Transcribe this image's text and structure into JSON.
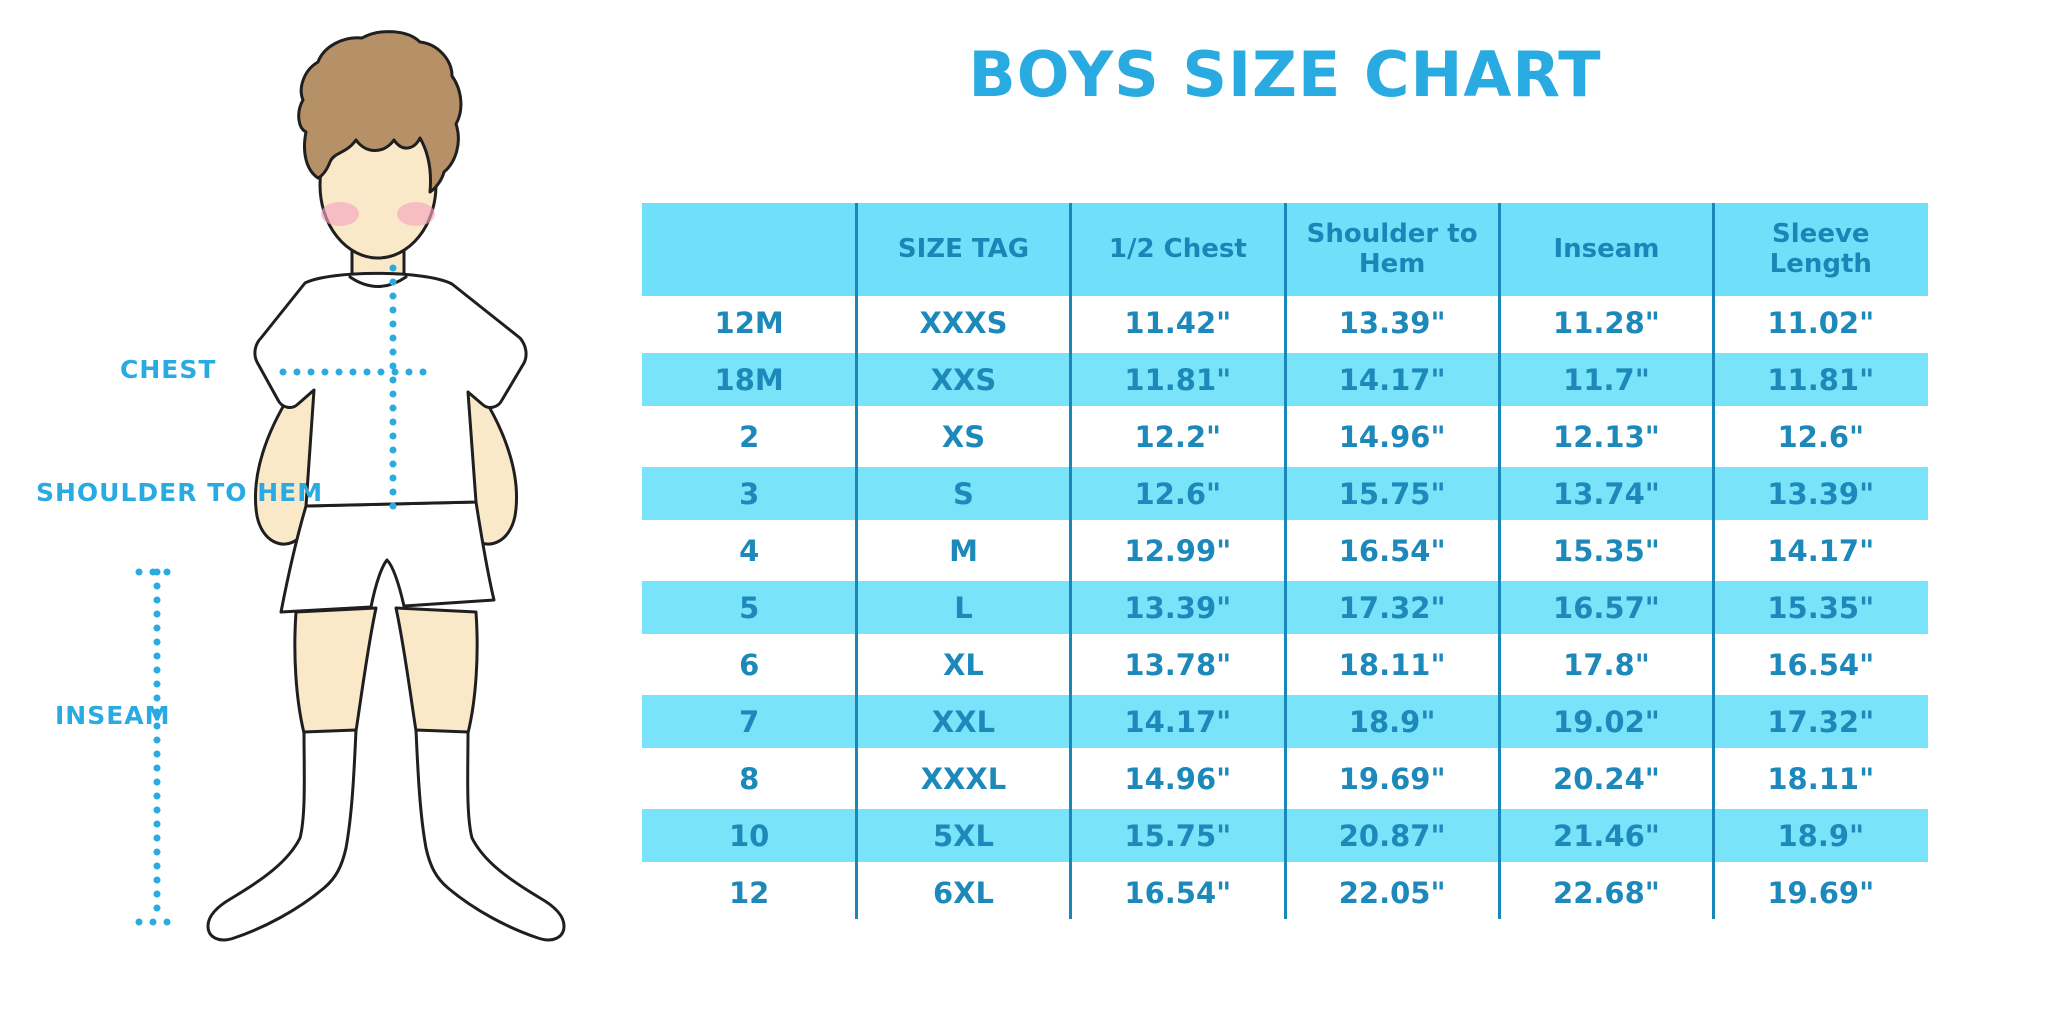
{
  "title": "BOYS SIZE CHART",
  "diagram": {
    "chest_label": "CHEST",
    "shoulder_to_hem_label": "SHOULDER TO HEM",
    "inseam_label": "INSEAM"
  },
  "chart_data": {
    "type": "table",
    "title": "BOYS SIZE CHART",
    "columns": [
      "",
      "SIZE TAG",
      "1/2 Chest",
      "Shoulder to Hem",
      "Inseam",
      "Sleeve Length"
    ],
    "rows": [
      [
        "12M",
        "XXXS",
        "11.42\"",
        "13.39\"",
        "11.28\"",
        "11.02\""
      ],
      [
        "18M",
        "XXS",
        "11.81\"",
        "14.17\"",
        "11.7\"",
        "11.81\""
      ],
      [
        "2",
        "XS",
        "12.2\"",
        "14.96\"",
        "12.13\"",
        "12.6\""
      ],
      [
        "3",
        "S",
        "12.6\"",
        "15.75\"",
        "13.74\"",
        "13.39\""
      ],
      [
        "4",
        "M",
        "12.99\"",
        "16.54\"",
        "15.35\"",
        "14.17\""
      ],
      [
        "5",
        "L",
        "13.39\"",
        "17.32\"",
        "16.57\"",
        "15.35\""
      ],
      [
        "6",
        "XL",
        "13.78\"",
        "18.11\"",
        "17.8\"",
        "16.54\""
      ],
      [
        "7",
        "XXL",
        "14.17\"",
        "18.9\"",
        "19.02\"",
        "17.32\""
      ],
      [
        "8",
        "XXXL",
        "14.96\"",
        "19.69\"",
        "20.24\"",
        "18.11\""
      ],
      [
        "10",
        "5XL",
        "15.75\"",
        "20.87\"",
        "21.46\"",
        "18.9\""
      ],
      [
        "12",
        "6XL",
        "16.54\"",
        "22.05\"",
        "22.68\"",
        "19.69\""
      ]
    ],
    "layout": {
      "striped": true,
      "stripe_rows": "every other row starting with 18M",
      "grid": "vertical column dividers only"
    }
  },
  "colors": {
    "accent_blue": "#29ABE2",
    "table_header_bg": "#6EE0F9",
    "table_stripe_bg": "#79E3FA",
    "table_text": "#1D89BA",
    "column_divider": "#1987B9",
    "skin": "#FAE9C9",
    "hair": "#B69066",
    "cheek": "#F5A8BF",
    "outline": "#1F1F1F"
  }
}
